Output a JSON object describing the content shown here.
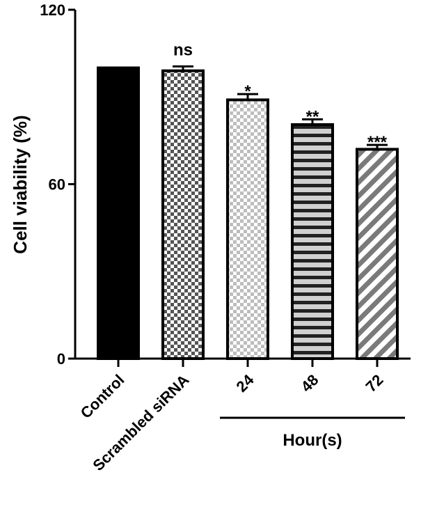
{
  "chart_data": {
    "type": "bar",
    "categories": [
      "Control",
      "Scrambled siRNA",
      "24",
      "48",
      "72"
    ],
    "values": [
      100,
      99,
      89,
      80.5,
      72
    ],
    "errors": [
      0,
      1.5,
      2,
      1.8,
      1.5
    ],
    "significance": [
      "",
      "ns",
      "*",
      "**",
      "***"
    ],
    "patterns": [
      "solid",
      "checker-dark",
      "checker-light",
      "horizontal-stripes",
      "diagonal-stripes"
    ],
    "ylabel": "Cell viability (%)",
    "yticks": [
      0,
      60,
      120
    ],
    "ylim": [
      0,
      120
    ],
    "group_label": "Hour(s)",
    "group_members": [
      "24",
      "48",
      "72"
    ],
    "colors": {
      "bar_stroke": "#000000",
      "checker_dark": "#555555",
      "checker_light": "#bdbdbd",
      "stripe_light": "#d0d0d0",
      "stripe_dark": "#7a7a7a"
    }
  }
}
